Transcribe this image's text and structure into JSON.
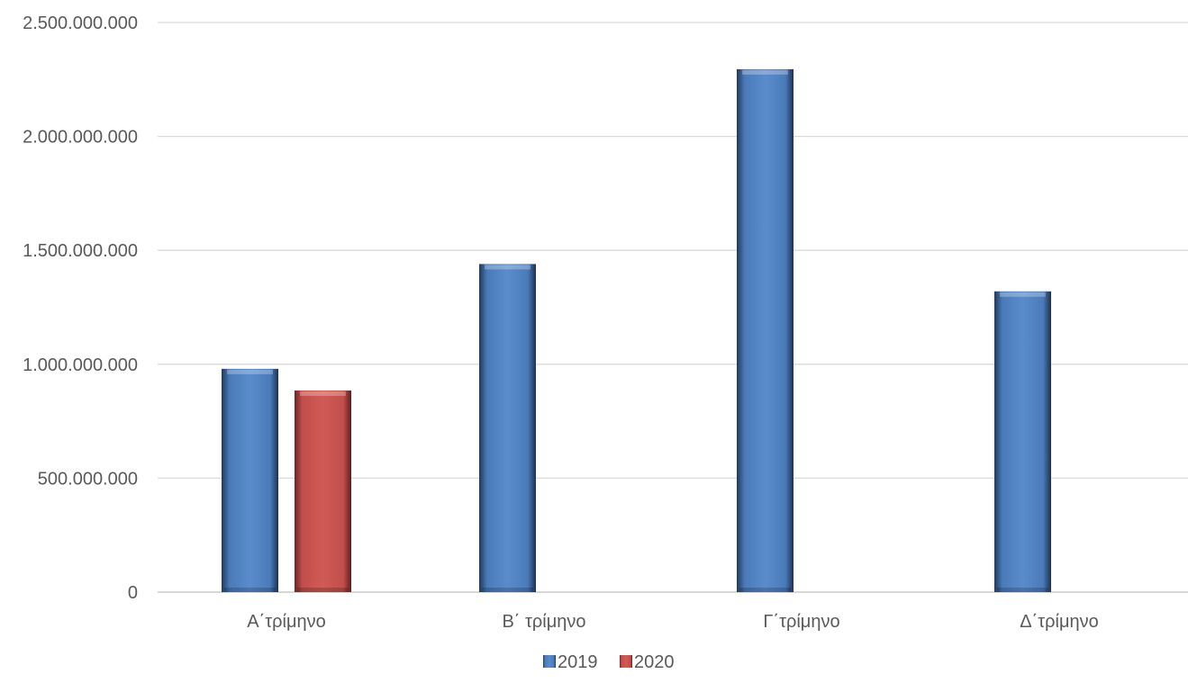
{
  "chart_data": {
    "type": "bar",
    "title": "",
    "xlabel": "",
    "ylabel": "",
    "categories": [
      "Α΄τρίμηνο",
      "Β΄ τρίμηνο",
      "Γ΄τρίμηνο",
      "Δ΄τρίμηνο"
    ],
    "series": [
      {
        "name": "2019",
        "color": "#4F81BD",
        "values": [
          980000000,
          1440000000,
          2295000000,
          1320000000
        ]
      },
      {
        "name": "2020",
        "color": "#C0504D",
        "values": [
          885000000,
          null,
          null,
          null
        ]
      }
    ],
    "ylim": [
      0,
      2500000000
    ],
    "yticks": [
      0,
      500000000,
      1000000000,
      1500000000,
      2000000000,
      2500000000
    ],
    "ytick_labels": [
      "0",
      "500.000.000",
      "1.000.000.000",
      "1.500.000.000",
      "2.000.000.000",
      "2.500.000.000"
    ],
    "grid": true,
    "legend_position": "bottom"
  }
}
